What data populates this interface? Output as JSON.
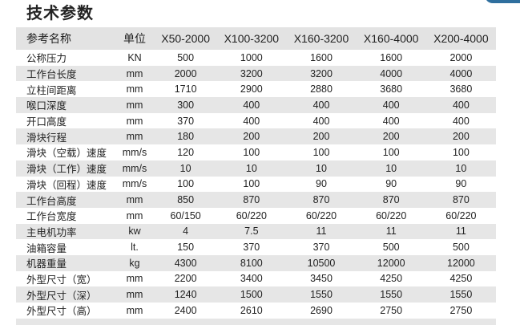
{
  "title": "技术参数",
  "table": {
    "headers": [
      "参考名称",
      "单位",
      "X50-2000",
      "X100-3200",
      "X160-3200",
      "X160-4000",
      "X200-4000"
    ],
    "rows": [
      [
        "公称压力",
        "KN",
        "500",
        "1000",
        "1600",
        "1600",
        "2000"
      ],
      [
        "工作台长度",
        "mm",
        "2000",
        "3200",
        "3200",
        "4000",
        "4000"
      ],
      [
        "立柱间距离",
        "mm",
        "1710",
        "2900",
        "2880",
        "3680",
        "3680"
      ],
      [
        "喉口深度",
        "mm",
        "300",
        "400",
        "400",
        "400",
        "400"
      ],
      [
        "开口高度",
        "mm",
        "370",
        "400",
        "400",
        "400",
        "400"
      ],
      [
        "滑块行程",
        "mm",
        "180",
        "200",
        "200",
        "200",
        "200"
      ],
      [
        "滑块（空载）速度",
        "mm/s",
        "120",
        "100",
        "100",
        "100",
        "100"
      ],
      [
        "滑块（工作）速度",
        "mm/s",
        "10",
        "10",
        "10",
        "10",
        "10"
      ],
      [
        "滑块（回程）速度",
        "mm/s",
        "100",
        "100",
        "90",
        "90",
        "90"
      ],
      [
        "工作台高度",
        "mm",
        "850",
        "870",
        "870",
        "870",
        "870"
      ],
      [
        "工作台宽度",
        "mm",
        "60/150",
        "60/220",
        "60/220",
        "60/220",
        "60/220"
      ],
      [
        "主电机功率",
        "kw",
        "4",
        "7.5",
        "11",
        "11",
        "11"
      ],
      [
        "油箱容量",
        "lt.",
        "150",
        "370",
        "370",
        "500",
        "500"
      ],
      [
        "机器重量",
        "kg",
        "4300",
        "8100",
        "10500",
        "12000",
        "12000"
      ],
      [
        "外型尺寸（宽）",
        "mm",
        "2200",
        "3400",
        "3450",
        "4250",
        "4250"
      ],
      [
        "外型尺寸（深）",
        "mm",
        "1240",
        "1500",
        "1550",
        "1550",
        "1550"
      ],
      [
        "外型尺寸（高）",
        "mm",
        "2400",
        "2610",
        "2690",
        "2750",
        "2750"
      ]
    ]
  },
  "colors": {
    "row_stripe": "#e6e6e6",
    "header_bg": "#e3e3e3",
    "accent": "#2f6f9e"
  }
}
